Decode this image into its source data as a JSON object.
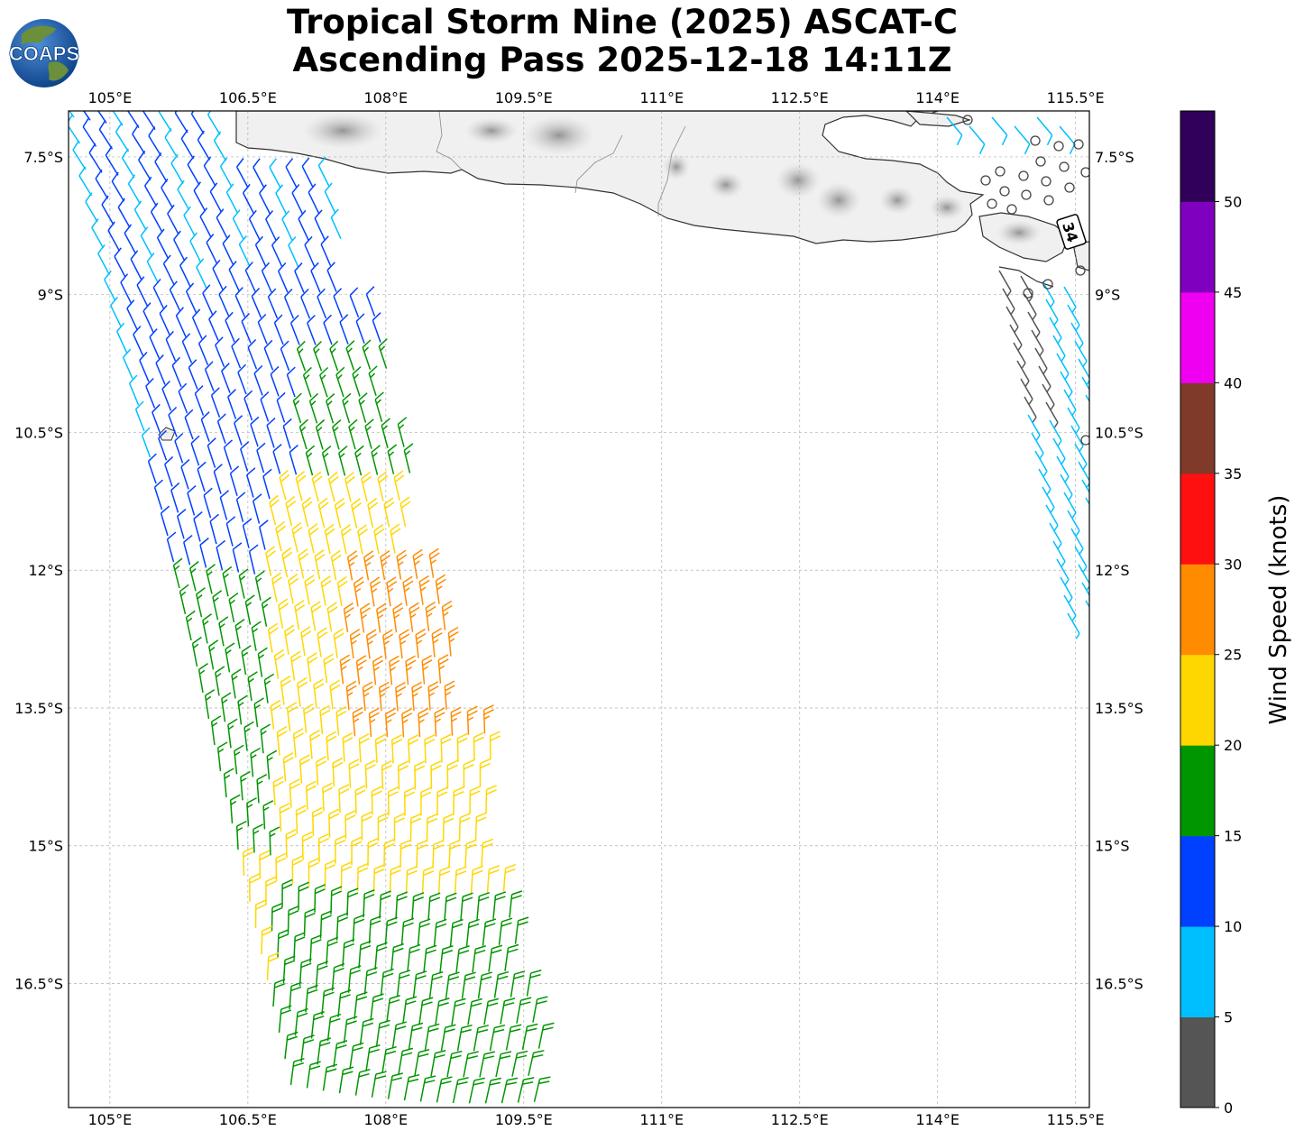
{
  "title": {
    "line1": "Tropical Storm Nine (2025) ASCAT-C",
    "line2": "Ascending Pass 2025-12-18 14:11Z"
  },
  "logo": {
    "text": "COAPS",
    "icon": "globe-icon"
  },
  "map": {
    "lon_range": [
      104.55,
      115.65
    ],
    "lat_range": [
      -17.85,
      -7.0
    ],
    "lon_ticks": [
      "105°E",
      "106.5°E",
      "108°E",
      "109.5°E",
      "111°E",
      "112.5°E",
      "114°E",
      "115.5°E"
    ],
    "lat_ticks": [
      "7.5°S",
      "9°S",
      "10.5°S",
      "12°S",
      "13.5°S",
      "15°S",
      "16.5°S"
    ],
    "wind_radius_label": "34"
  },
  "colorbar": {
    "label": "Wind Speed (knots)",
    "ticks": [
      "0",
      "5",
      "10",
      "15",
      "20",
      "25",
      "30",
      "35",
      "40",
      "45",
      "50"
    ],
    "colors": [
      "#555555",
      "#00bfff",
      "#0040ff",
      "#009600",
      "#ffd700",
      "#ff8c00",
      "#ff1010",
      "#7f3a2a",
      "#f000f0",
      "#8000c0",
      "#30005a"
    ]
  }
}
